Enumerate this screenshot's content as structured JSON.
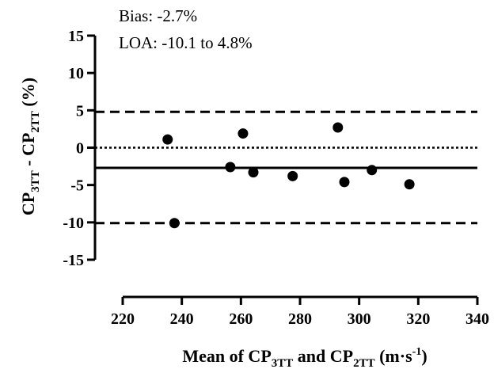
{
  "chart_data": {
    "type": "scatter",
    "title": "",
    "xlabel": {
      "parts": [
        {
          "text": "Mean of CP",
          "style": "normal"
        },
        {
          "text": "3TT",
          "style": "sub"
        },
        {
          "text": " and CP",
          "style": "normal"
        },
        {
          "text": "2TT",
          "style": "sub"
        },
        {
          "text": " (m·s",
          "style": "normal"
        },
        {
          "text": "-1",
          "style": "sup"
        },
        {
          "text": ")",
          "style": "normal"
        }
      ]
    },
    "ylabel": {
      "parts": [
        {
          "text": "CP",
          "style": "normal"
        },
        {
          "text": "3TT",
          "style": "sub"
        },
        {
          "text": " - CP",
          "style": "normal"
        },
        {
          "text": "2TT",
          "style": "sub"
        },
        {
          "text": " (%)",
          "style": "normal"
        }
      ]
    },
    "xlim": [
      220,
      340
    ],
    "ylim": [
      -15,
      15
    ],
    "xticks": [
      220,
      240,
      260,
      280,
      300,
      320,
      340
    ],
    "yticks": [
      15,
      10,
      5,
      0,
      -5,
      -10,
      -15
    ],
    "grid": false,
    "annotations": [
      "Bias: -2.7%",
      "LOA: -10.1 to 4.8%"
    ],
    "reference_lines": [
      {
        "y": 4.8,
        "style": "dashed"
      },
      {
        "y": 0,
        "style": "dotted"
      },
      {
        "y": -2.7,
        "style": "solid"
      },
      {
        "y": -10.1,
        "style": "dashed"
      }
    ],
    "points": [
      {
        "x": 235.2,
        "y": 1.1
      },
      {
        "x": 237.5,
        "y": -10.1
      },
      {
        "x": 256.4,
        "y": -2.6
      },
      {
        "x": 260.7,
        "y": 1.9
      },
      {
        "x": 264.2,
        "y": -3.3
      },
      {
        "x": 277.5,
        "y": -3.8
      },
      {
        "x": 292.8,
        "y": 2.7
      },
      {
        "x": 295.0,
        "y": -4.6
      },
      {
        "x": 304.3,
        "y": -3.0
      },
      {
        "x": 317.0,
        "y": -4.9
      }
    ]
  }
}
